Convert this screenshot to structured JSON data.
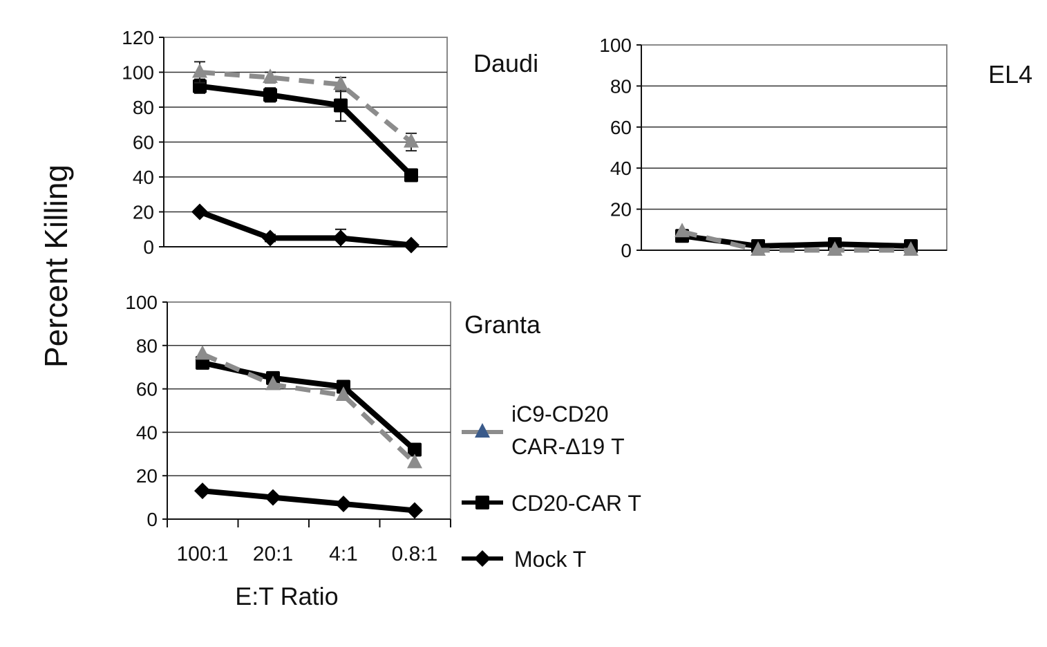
{
  "chart_data": {
    "type": "line",
    "ylabel": "Percent Killing",
    "xlabel": "E:T Ratio",
    "categories": [
      "100:1",
      "20:1",
      "4:1",
      "0.8:1"
    ],
    "legend": {
      "placement": "right",
      "entries": [
        {
          "line1": "iC9-CD20",
          "line2": "CAR-Δ19 T",
          "marker": "triangle",
          "color": "#8c8c8c",
          "dashed": true
        },
        {
          "line1": "CD20-CAR T",
          "marker": "square",
          "color": "#000000",
          "dashed": false
        },
        {
          "line1": "Mock T",
          "marker": "diamond",
          "color": "#000000",
          "dashed": false
        }
      ]
    },
    "panels": [
      {
        "title": "Daudi",
        "ylim": [
          0,
          120
        ],
        "yticks": [
          0,
          20,
          40,
          60,
          80,
          100,
          120
        ],
        "series": [
          {
            "name": "Mock T",
            "values": [
              20,
              5,
              5,
              1
            ],
            "errors": [
              0,
              2,
              5,
              0
            ]
          },
          {
            "name": "CD20-CAR T",
            "values": [
              92,
              87,
              81,
              41
            ],
            "errors": [
              4,
              4,
              9,
              0
            ]
          },
          {
            "name": "iC9-CD20 CAR-Δ19 T",
            "values": [
              100,
              97,
              93,
              60
            ],
            "errors": [
              6,
              3,
              4,
              5
            ]
          }
        ]
      },
      {
        "title": "EL4",
        "ylim": [
          0,
          100
        ],
        "yticks": [
          0,
          20,
          40,
          60,
          80,
          100
        ],
        "series": [
          {
            "name": "CD20-CAR T",
            "values": [
              7,
              2,
              3,
              2
            ],
            "errors": [
              0,
              0,
              0,
              0
            ]
          },
          {
            "name": "iC9-CD20 CAR-Δ19 T",
            "values": [
              9,
              0,
              0,
              0
            ],
            "errors": [
              0,
              0,
              0,
              0
            ]
          }
        ]
      },
      {
        "title": "Granta",
        "ylim": [
          0,
          100
        ],
        "yticks": [
          0,
          20,
          40,
          60,
          80,
          100
        ],
        "series": [
          {
            "name": "Mock T",
            "values": [
              13,
              10,
              7,
              4
            ],
            "errors": [
              0,
              0,
              0,
              0
            ]
          },
          {
            "name": "CD20-CAR T",
            "values": [
              72,
              65,
              61,
              32
            ],
            "errors": [
              0,
              0,
              0,
              0
            ]
          },
          {
            "name": "iC9-CD20 CAR-Δ19 T",
            "values": [
              76,
              62,
              57,
              26
            ],
            "errors": [
              0,
              0,
              0,
              0
            ]
          }
        ]
      }
    ]
  }
}
